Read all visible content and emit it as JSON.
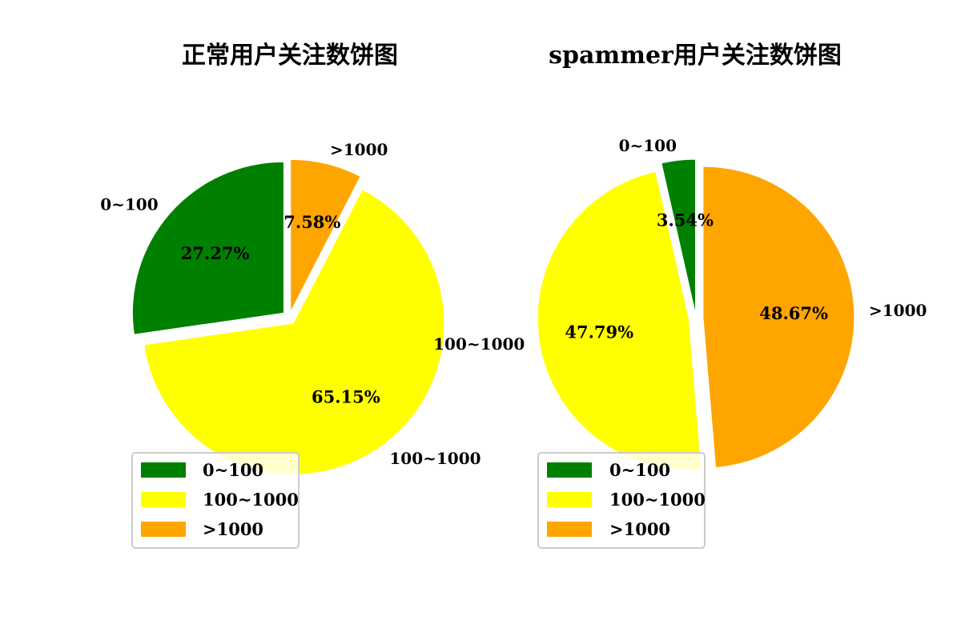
{
  "chart_data": [
    {
      "type": "pie",
      "title": "正常用户关注数饼图",
      "categories": [
        "0~100",
        "100~1000",
        ">1000"
      ],
      "values": [
        27.27,
        65.15,
        7.58
      ],
      "percent_labels": [
        "27.27%",
        "65.15%",
        "7.58%"
      ],
      "colors": [
        "#008000",
        "#ffff00",
        "#ffa500"
      ],
      "start_angle_deg": 90,
      "explode": [
        0.05,
        0.05,
        0.05
      ],
      "legend": {
        "placement": "lower-left",
        "entries": [
          "0~100",
          "100~1000",
          ">1000"
        ]
      }
    },
    {
      "type": "pie",
      "title": "spammer用户关注数饼图",
      "categories": [
        "0~100",
        "100~1000",
        ">1000"
      ],
      "values": [
        3.54,
        47.79,
        48.67
      ],
      "percent_labels": [
        "3.54%",
        "47.79%",
        "48.67%"
      ],
      "colors": [
        "#008000",
        "#ffff00",
        "#ffa500"
      ],
      "start_angle_deg": 90,
      "explode": [
        0.05,
        0.05,
        0.05
      ],
      "legend": {
        "placement": "lower-left",
        "entries": [
          "0~100",
          "100~1000",
          ">1000"
        ]
      }
    }
  ]
}
